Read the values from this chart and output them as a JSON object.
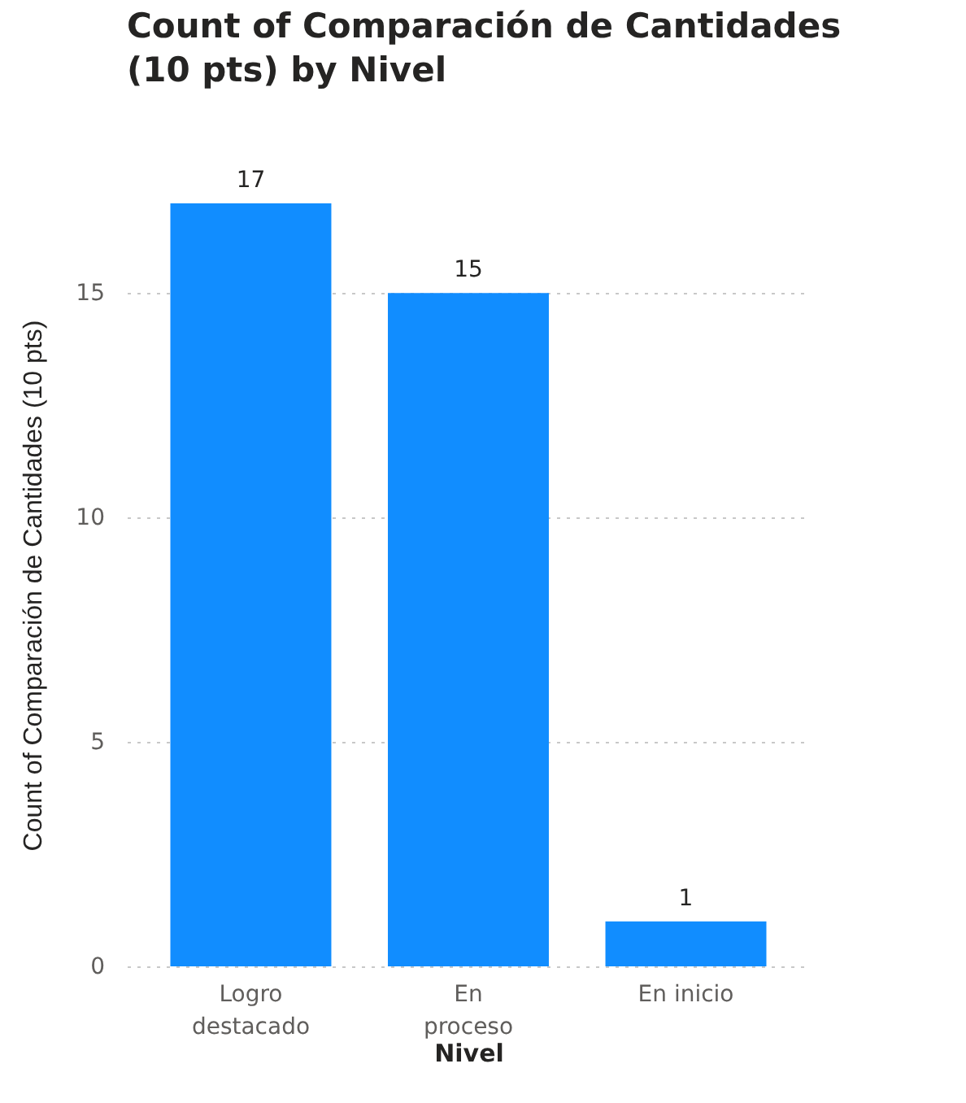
{
  "chart_data": {
    "type": "bar",
    "title": "Count of Comparación de Cantidades (10 pts) by Nivel",
    "xlabel": "Nivel",
    "ylabel": "Count of Comparación de Cantidades (10 pts)",
    "categories": [
      "Logro destacado",
      "En proceso",
      "En inicio"
    ],
    "values": [
      17,
      15,
      1
    ],
    "color": "#118dff",
    "ylim": [
      0,
      17
    ],
    "yticks": [
      0,
      5,
      10,
      15
    ],
    "grid": "y",
    "data_labels": true
  }
}
